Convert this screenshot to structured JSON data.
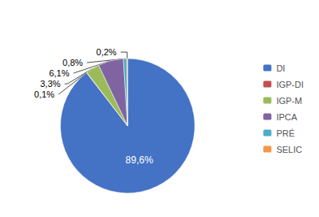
{
  "chart_data": {
    "type": "pie",
    "categories": [
      "DI",
      "IGP-DI",
      "IGP-M",
      "IPCA",
      "PRÉ",
      "SELIC"
    ],
    "values": [
      89.6,
      0.1,
      3.3,
      6.1,
      0.8,
      0.2
    ],
    "value_labels": [
      "89,6%",
      "0,1%",
      "3,3%",
      "6,1%",
      "0,8%",
      "0,2%"
    ],
    "colors": [
      "#4472C4",
      "#C0504D",
      "#9BBB59",
      "#8064A2",
      "#4BACC6",
      "#F79646"
    ],
    "data_labels": true,
    "legend": "right"
  }
}
